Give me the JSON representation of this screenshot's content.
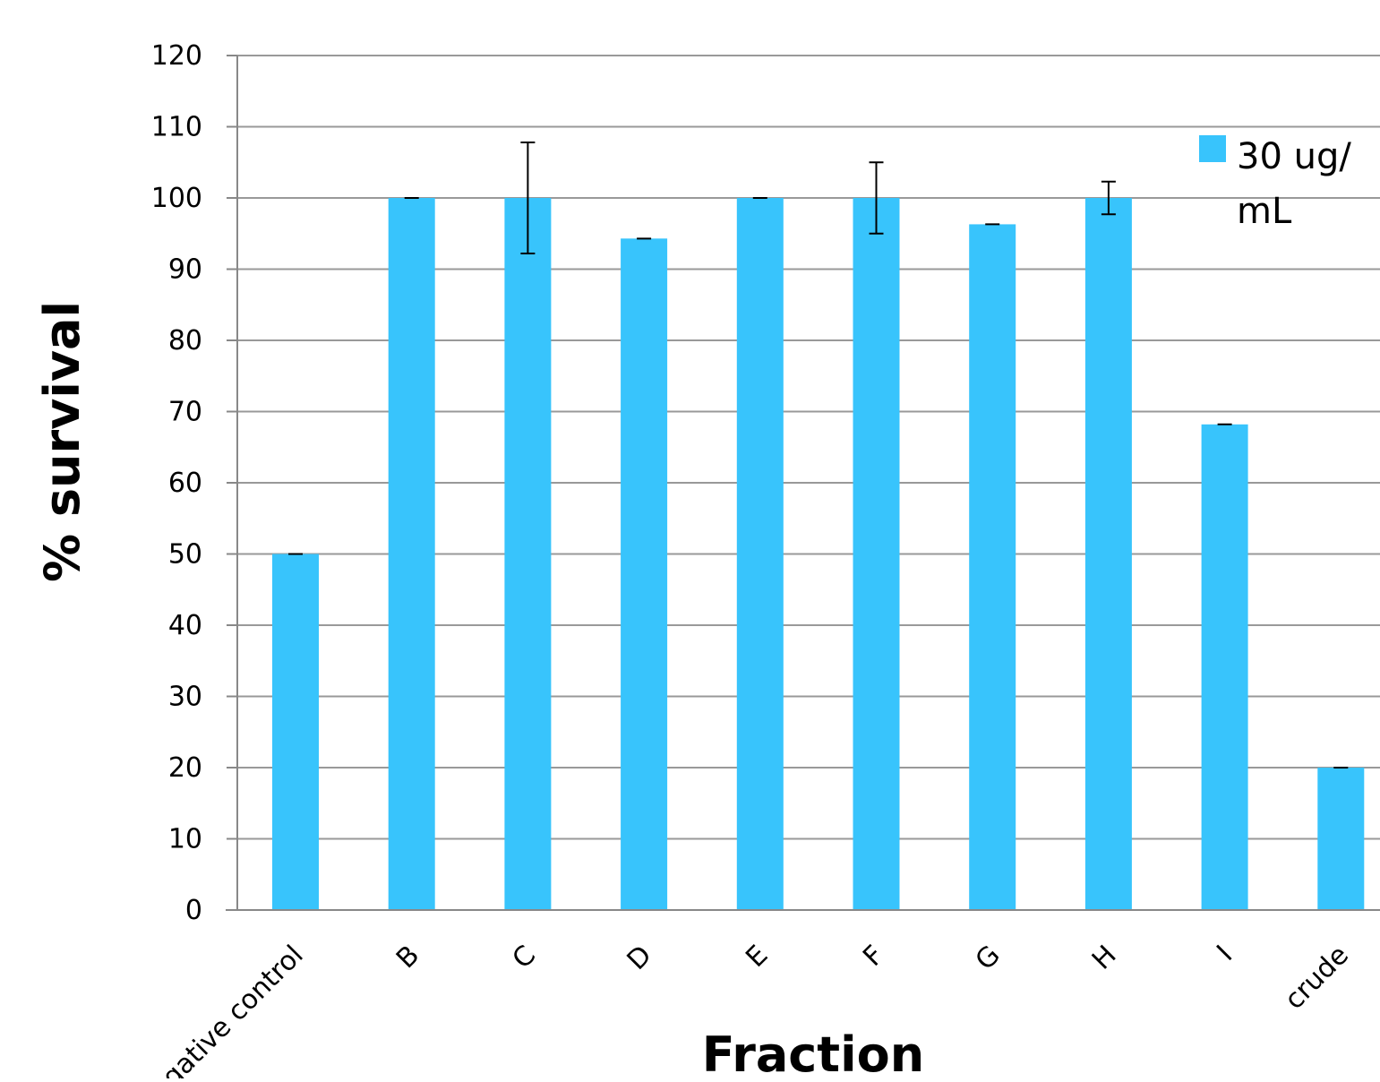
{
  "chart_data": {
    "type": "bar",
    "xlabel": "Fraction",
    "ylabel": "% survival",
    "ylim": [
      0,
      120
    ],
    "ytick_step": 10,
    "yticks": [
      "0",
      "10",
      "20",
      "30",
      "40",
      "50",
      "60",
      "70",
      "80",
      "90",
      "100",
      "110",
      "120"
    ],
    "grid": true,
    "categories": [
      "negative control",
      "B",
      "C",
      "D",
      "E",
      "F",
      "G",
      "H",
      "I",
      "crude"
    ],
    "series": [
      {
        "name": "30 ug/ mL",
        "legend_lines": [
          "30 ug/",
          "mL"
        ],
        "color": "#38c4fc",
        "values": [
          50,
          100,
          100,
          94.3,
          100,
          100,
          96.3,
          100,
          68.2,
          20
        ],
        "error": [
          0,
          0,
          7.8,
          0,
          0,
          5.0,
          0,
          2.3,
          0,
          0
        ]
      }
    ],
    "legend_position": "top-right"
  }
}
